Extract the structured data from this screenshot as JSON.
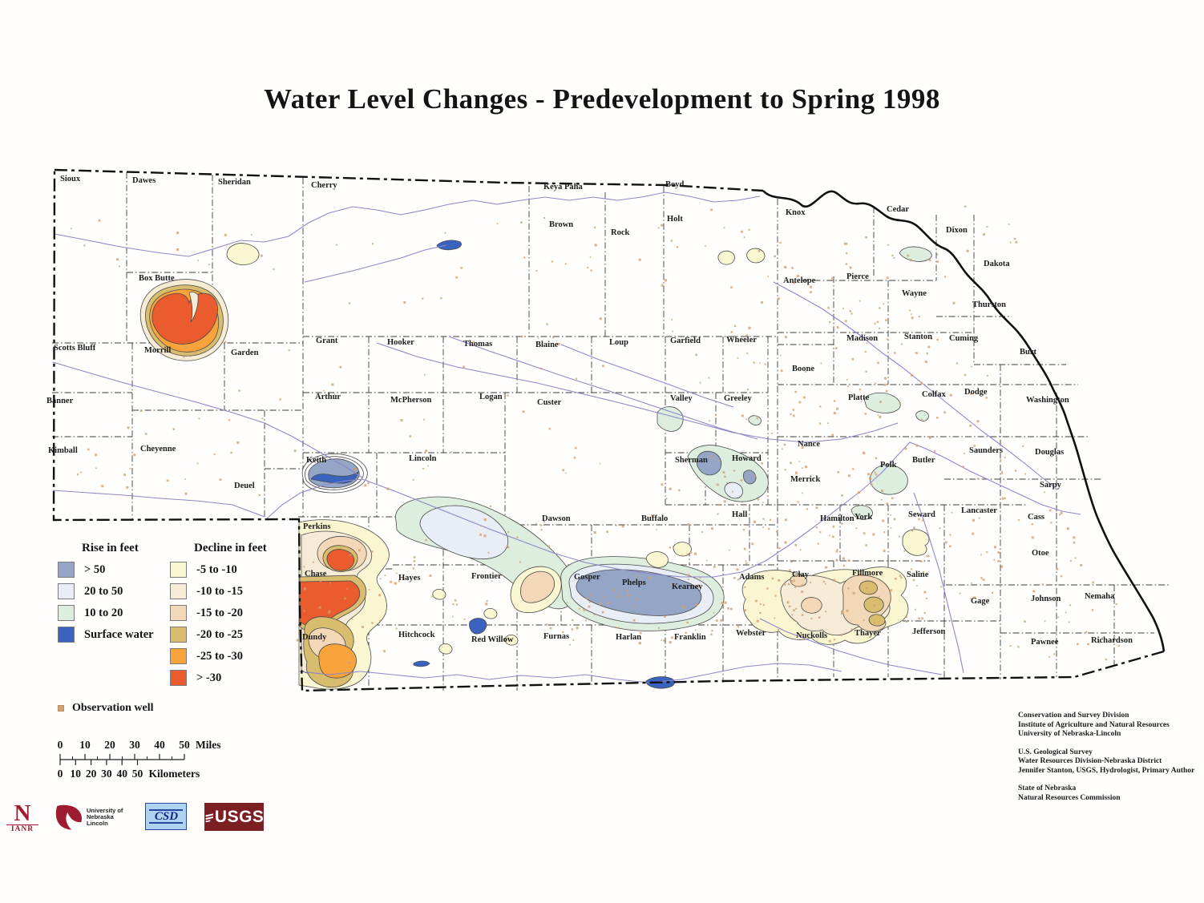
{
  "title": "Water Level Changes - Predevelopment to Spring 1998",
  "legend": {
    "rise": {
      "heading": "Rise in feet",
      "items": [
        {
          "key": "rise50",
          "label": "> 50",
          "color": "#94a5c6"
        },
        {
          "key": "rise20",
          "label": "20 to 50",
          "color": "#e9eef6"
        },
        {
          "key": "rise10",
          "label": "10 to 20",
          "color": "#ddeede"
        },
        {
          "key": "water",
          "label": "Surface water",
          "color": "#3a63c0"
        }
      ]
    },
    "decline": {
      "heading": "Decline in feet",
      "items": [
        {
          "key": "d5",
          "label": "-5 to -10",
          "color": "#faf6d2"
        },
        {
          "key": "d10",
          "label": "-10 to -15",
          "color": "#f6ecd6"
        },
        {
          "key": "d15",
          "label": "-15 to -20",
          "color": "#f2d8b6"
        },
        {
          "key": "d20",
          "label": "-20 to -25",
          "color": "#d9bd6e"
        },
        {
          "key": "d25",
          "label": "-25 to -30",
          "color": "#f8a33c"
        },
        {
          "key": "d30",
          "label": "> -30",
          "color": "#ea5b2e"
        }
      ]
    },
    "observation_well": "Observation well",
    "well_color": "#d2a174"
  },
  "scale_bar": {
    "miles": {
      "ticks": [
        "0",
        "10",
        "20",
        "30",
        "40",
        "50"
      ],
      "unit": "Miles"
    },
    "kilometers": {
      "ticks": [
        "0",
        "10",
        "20",
        "30",
        "40",
        "50"
      ],
      "unit": "Kilometers"
    }
  },
  "credits": {
    "blocks": [
      [
        "Conservation and Survey Division",
        "Institute of Agriculture and Natural Resources",
        "University of Nebraska-Lincoln"
      ],
      [
        "U.S. Geological Survey",
        "Water Resources Division-Nebraska District",
        "Jennifer Stanton, USGS, Hydrologist, Primary Author"
      ],
      [
        "State of Nebraska",
        "Natural Resources Commission"
      ]
    ]
  },
  "logos": {
    "ianr": {
      "letter": "N",
      "sub": "IANR"
    },
    "unl": {
      "lines": [
        "University of",
        "Nebraska",
        "Lincoln"
      ]
    },
    "csd": {
      "text": "CSD"
    },
    "usgs": {
      "text": "USGS"
    }
  },
  "map": {
    "counties": [
      [
        "Sioux",
        75,
        226
      ],
      [
        "Dawes",
        165,
        228
      ],
      [
        "Sheridan",
        272,
        230
      ],
      [
        "Cherry",
        388,
        234
      ],
      [
        "Keya Paha",
        678,
        236
      ],
      [
        "Boyd",
        830,
        233
      ],
      [
        "Brown",
        685,
        283
      ],
      [
        "Rock",
        762,
        293
      ],
      [
        "Holt",
        832,
        276
      ],
      [
        "Knox",
        980,
        268
      ],
      [
        "Cedar",
        1106,
        264
      ],
      [
        "Dixon",
        1180,
        290
      ],
      [
        "Dakota",
        1227,
        332
      ],
      [
        "Antelope",
        977,
        353
      ],
      [
        "Pierce",
        1056,
        348
      ],
      [
        "Wayne",
        1125,
        369
      ],
      [
        "Thurston",
        1213,
        383
      ],
      [
        "Madison",
        1056,
        425
      ],
      [
        "Stanton",
        1128,
        423
      ],
      [
        "Cuming",
        1184,
        425
      ],
      [
        "Burt",
        1272,
        442
      ],
      [
        "Box Butte",
        173,
        350
      ],
      [
        "Scotts Bluff",
        67,
        437
      ],
      [
        "Morrill",
        180,
        440
      ],
      [
        "Garden",
        288,
        443
      ],
      [
        "Banner",
        58,
        503
      ],
      [
        "Kimball",
        60,
        565
      ],
      [
        "Cheyenne",
        175,
        563
      ],
      [
        "Deuel",
        292,
        609
      ],
      [
        "Grant",
        394,
        428
      ],
      [
        "Hooker",
        483,
        430
      ],
      [
        "Thomas",
        578,
        432
      ],
      [
        "Blaine",
        668,
        433
      ],
      [
        "Loup",
        760,
        430
      ],
      [
        "Garfield",
        836,
        428
      ],
      [
        "Wheeler",
        906,
        427
      ],
      [
        "Boone",
        988,
        463
      ],
      [
        "Platte",
        1058,
        499
      ],
      [
        "Colfax",
        1150,
        495
      ],
      [
        "Dodge",
        1203,
        492
      ],
      [
        "Washington",
        1280,
        502
      ],
      [
        "Arthur",
        393,
        498
      ],
      [
        "McPherson",
        487,
        502
      ],
      [
        "Logan",
        598,
        498
      ],
      [
        "Custer",
        670,
        505
      ],
      [
        "Valley",
        836,
        500
      ],
      [
        "Greeley",
        903,
        500
      ],
      [
        "Nance",
        995,
        557
      ],
      [
        "Merrick",
        986,
        601
      ],
      [
        "Keith",
        382,
        577
      ],
      [
        "Lincoln",
        510,
        575
      ],
      [
        "Sherman",
        842,
        577
      ],
      [
        "Howard",
        913,
        575
      ],
      [
        "Polk",
        1098,
        583
      ],
      [
        "Butler",
        1138,
        577
      ],
      [
        "Saunders",
        1209,
        565
      ],
      [
        "Douglas",
        1291,
        567
      ],
      [
        "Sarpy",
        1297,
        608
      ],
      [
        "Hall",
        913,
        645
      ],
      [
        "Hamilton",
        1023,
        650
      ],
      [
        "York",
        1066,
        648
      ],
      [
        "Seward",
        1133,
        645
      ],
      [
        "Lancaster",
        1199,
        640
      ],
      [
        "Cass",
        1282,
        648
      ],
      [
        "Otoe",
        1287,
        693
      ],
      [
        "Dawson",
        676,
        650
      ],
      [
        "Buffalo",
        800,
        650
      ],
      [
        "Perkins",
        378,
        660
      ],
      [
        "Chase",
        380,
        719
      ],
      [
        "Hayes",
        497,
        724
      ],
      [
        "Frontier",
        588,
        722
      ],
      [
        "Gosper",
        716,
        723
      ],
      [
        "Phelps",
        776,
        730
      ],
      [
        "Kearney",
        838,
        735
      ],
      [
        "Adams",
        922,
        723
      ],
      [
        "Clay",
        988,
        720
      ],
      [
        "Fillmore",
        1063,
        718
      ],
      [
        "Saline",
        1131,
        720
      ],
      [
        "Gage",
        1211,
        753
      ],
      [
        "Johnson",
        1286,
        750
      ],
      [
        "Nemaha",
        1353,
        747
      ],
      [
        "Dundy",
        377,
        798
      ],
      [
        "Hitchcock",
        497,
        795
      ],
      [
        "Red Willow",
        588,
        801
      ],
      [
        "Furnas",
        678,
        797
      ],
      [
        "Harlan",
        768,
        798
      ],
      [
        "Franklin",
        841,
        798
      ],
      [
        "Webster",
        918,
        793
      ],
      [
        "Nuckolls",
        993,
        796
      ],
      [
        "Thayer",
        1066,
        793
      ],
      [
        "Jefferson",
        1138,
        791
      ],
      [
        "Pawnee",
        1286,
        804
      ],
      [
        "Richardson",
        1361,
        802
      ]
    ]
  }
}
